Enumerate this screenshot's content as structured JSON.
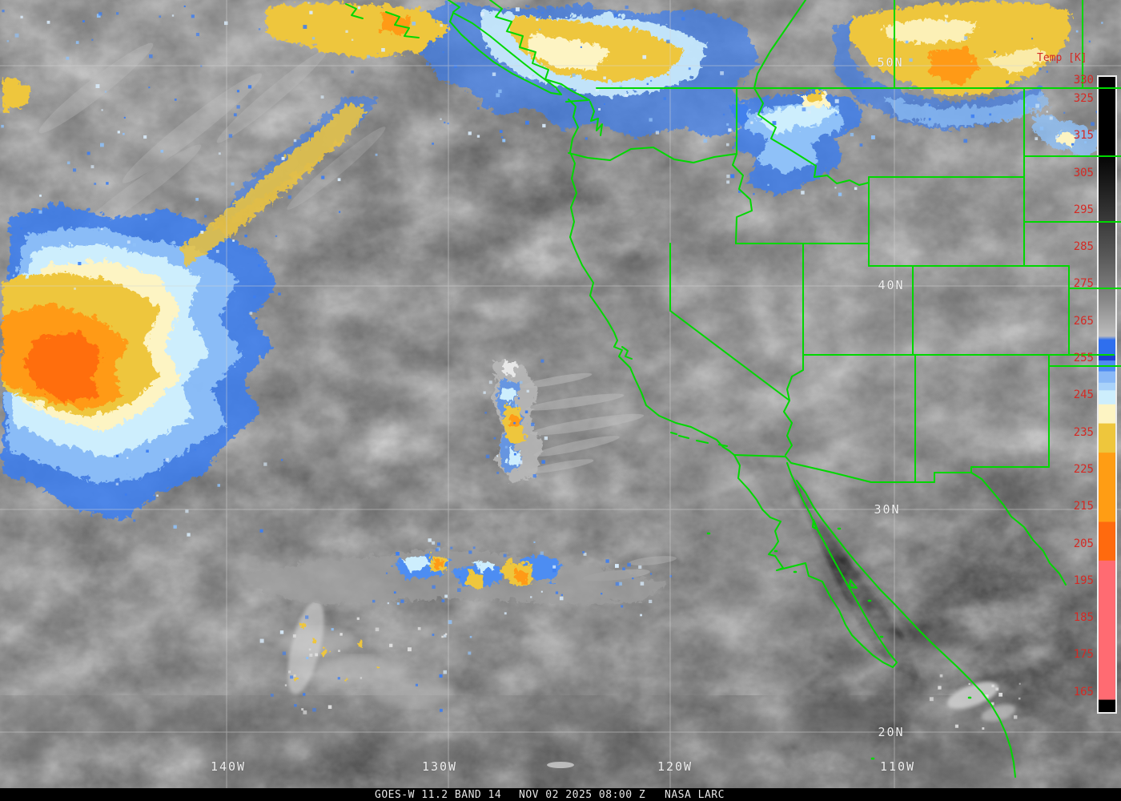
{
  "colorbar": {
    "title": "Temp [K]",
    "ticks": [
      "330",
      "325",
      "315",
      "305",
      "295",
      "285",
      "275",
      "265",
      "255",
      "245",
      "235",
      "225",
      "215",
      "205",
      "195",
      "185",
      "175",
      "165"
    ]
  },
  "grid": {
    "lat_labels": [
      "50N",
      "40N",
      "30N",
      "20N"
    ],
    "lon_labels": [
      "140W",
      "130W",
      "120W",
      "110W"
    ]
  },
  "caption": {
    "satellite_line": "GOES-W 11.2 BAND 14",
    "datetime": "NOV 02 2025 08:00 Z",
    "credit": "NASA LARC"
  },
  "colors": {
    "boundary_green": "#00d800",
    "annotation_red": "#d42a24",
    "grid_label_white": "#f0f0f0",
    "cloud_orange": "#ff9a12",
    "cloud_gold": "#eec63c",
    "cloud_blue": "#3b7df0"
  }
}
